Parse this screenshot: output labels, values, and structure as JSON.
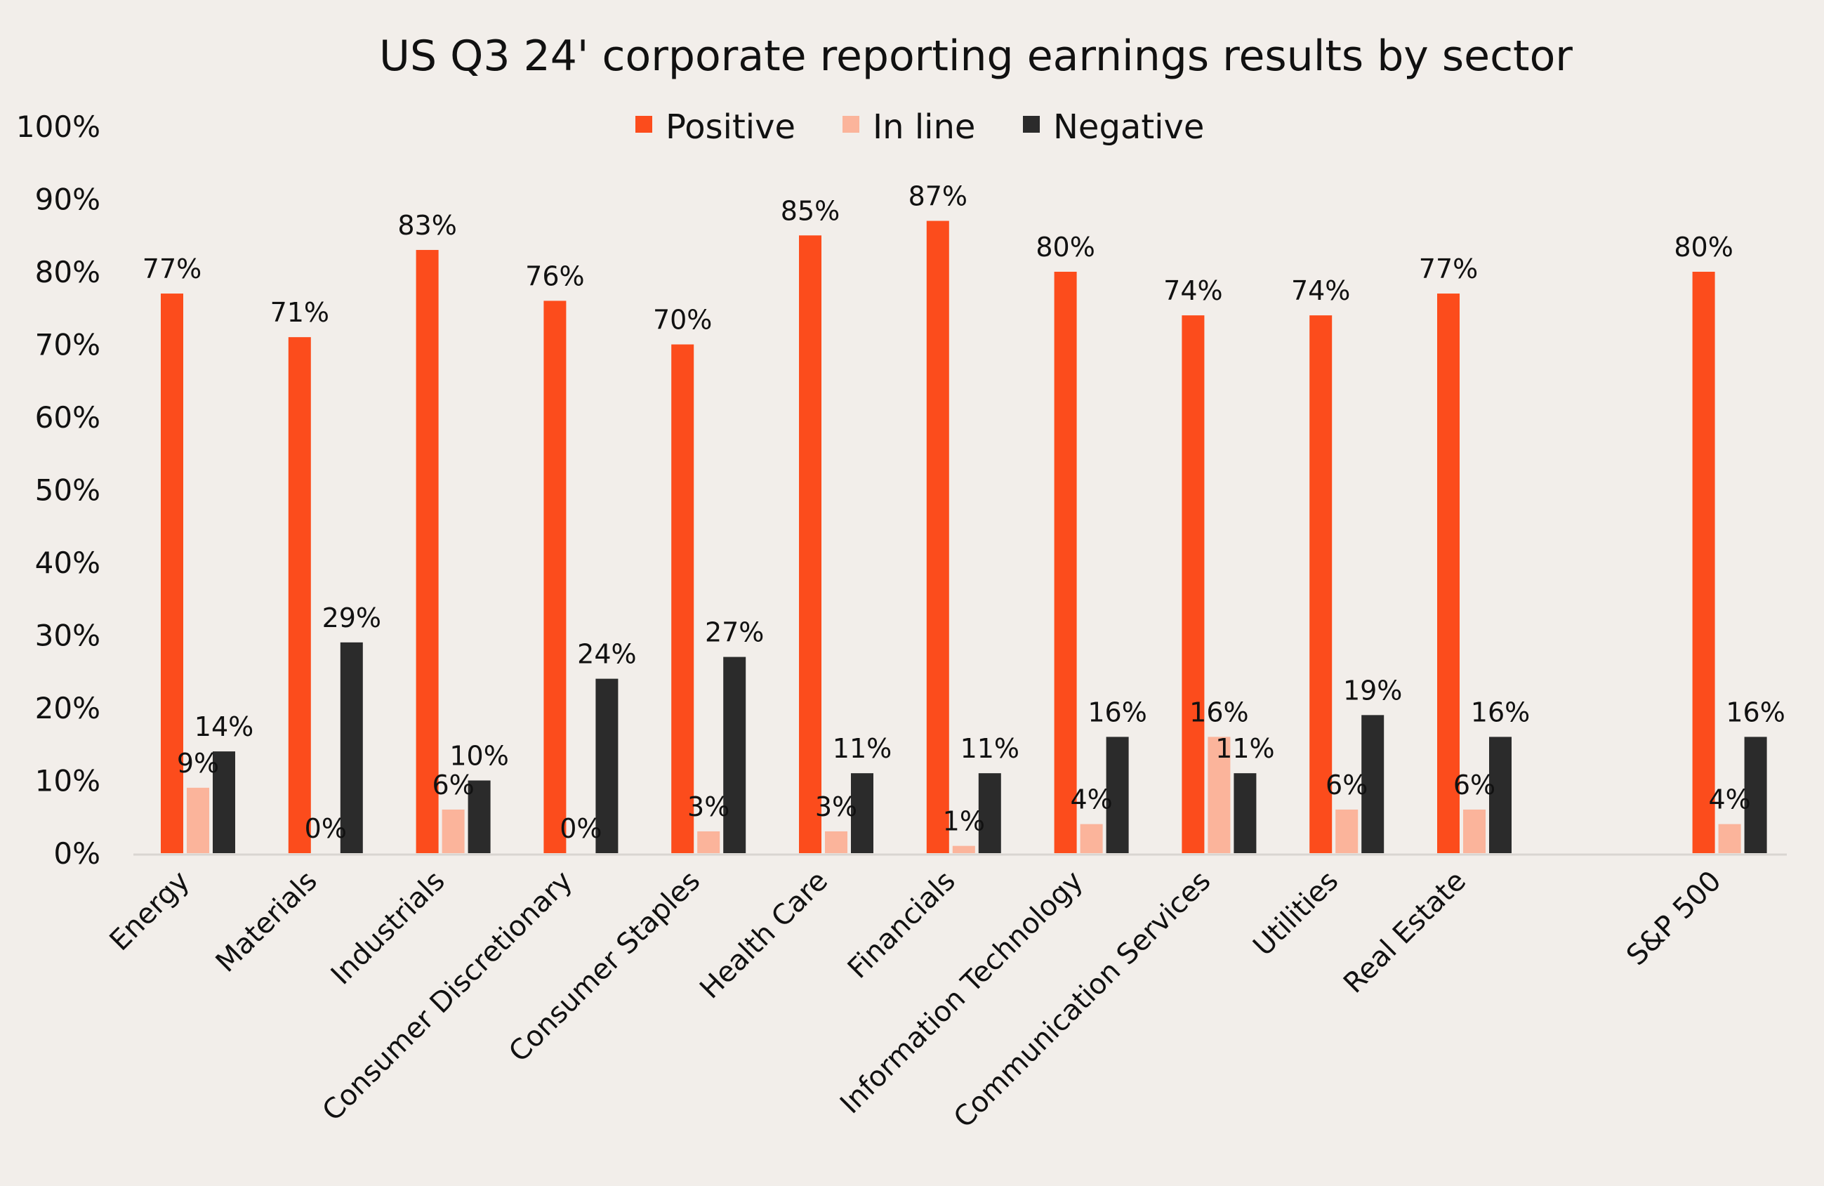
{
  "chart_data": {
    "type": "bar",
    "title": "US Q3 24' corporate reporting earnings results by sector",
    "categories": [
      "Energy",
      "Materials",
      "Industrials",
      "Consumer Discretionary",
      "Consumer Staples",
      "Health Care",
      "Financials",
      "Information Technology",
      "Communication Services",
      "Utilities",
      "Real Estate",
      "S&P 500"
    ],
    "series": [
      {
        "name": "Positive",
        "color": "#fc4c1c",
        "values": [
          77,
          71,
          83,
          76,
          70,
          85,
          87,
          80,
          74,
          74,
          77,
          80
        ],
        "labels": [
          "77%",
          "71%",
          "83%",
          "76%",
          "70%",
          "85%",
          "87%",
          "80%",
          "74%",
          "74%",
          "77%",
          "80%"
        ]
      },
      {
        "name": "In line",
        "color": "#fbb49b",
        "values": [
          9,
          0,
          6,
          0,
          3,
          3,
          1,
          4,
          16,
          6,
          6,
          4
        ],
        "labels": [
          "9%",
          "0%",
          "6%",
          "0%",
          "3%",
          "3%",
          "1%",
          "4%",
          "16%",
          "6%",
          "6%",
          "4%"
        ]
      },
      {
        "name": "Negative",
        "color": "#2b2b2b",
        "values": [
          14,
          29,
          10,
          24,
          27,
          11,
          11,
          16,
          11,
          19,
          16,
          16
        ],
        "labels": [
          "14%",
          "29%",
          "10%",
          "24%",
          "27%",
          "11%",
          "11%",
          "16%",
          "11%",
          "19%",
          "16%",
          "16%"
        ]
      }
    ],
    "yticks": [
      "0%",
      "10%",
      "20%",
      "30%",
      "40%",
      "50%",
      "60%",
      "70%",
      "80%",
      "90%",
      "100%"
    ],
    "ylim": [
      0,
      100
    ],
    "legend": "top-center",
    "grid": false
  }
}
